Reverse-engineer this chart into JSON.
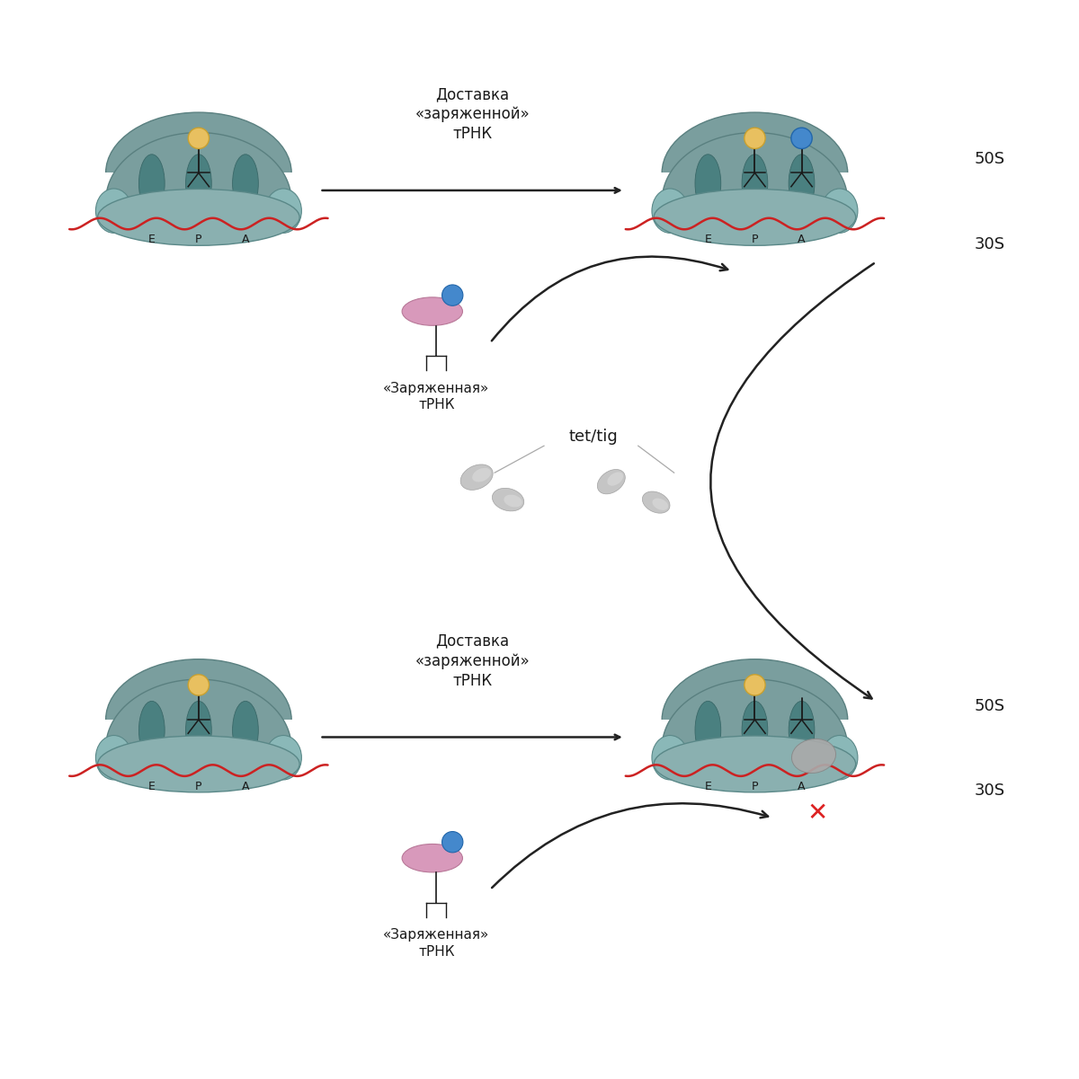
{
  "bg_color": "#ffffff",
  "ribo_50s_color": "#7a9e9e",
  "ribo_50s_edge": "#5a8080",
  "ribo_30s_color": "#8ab0b0",
  "ribo_30s_edge": "#5a8888",
  "slot_color": "#4a8080",
  "slot_edge": "#3a6868",
  "mrna_color": "#cc2222",
  "yellow_ball_color": "#e8c060",
  "yellow_ball_edge": "#c8a030",
  "blue_ball_color": "#4488cc",
  "blue_ball_edge": "#2266aa",
  "trna_body_color": "#d899bb",
  "trna_body_edge": "#b87898",
  "gray_drug_color": "#bbbbbb",
  "gray_drug_edge": "#999999",
  "label_color": "#1a1a1a",
  "arrow_color": "#222222",
  "red_x_color": "#dd2222",
  "top_label": "Доставка\n«заряженной»\nтРНК",
  "trna_label": "«Заряженная»\nтРНК",
  "tet_label": "tet/tig",
  "label_50S": "50S",
  "label_30S": "30S",
  "slot_E": "E",
  "slot_P": "P",
  "slot_A": "A"
}
